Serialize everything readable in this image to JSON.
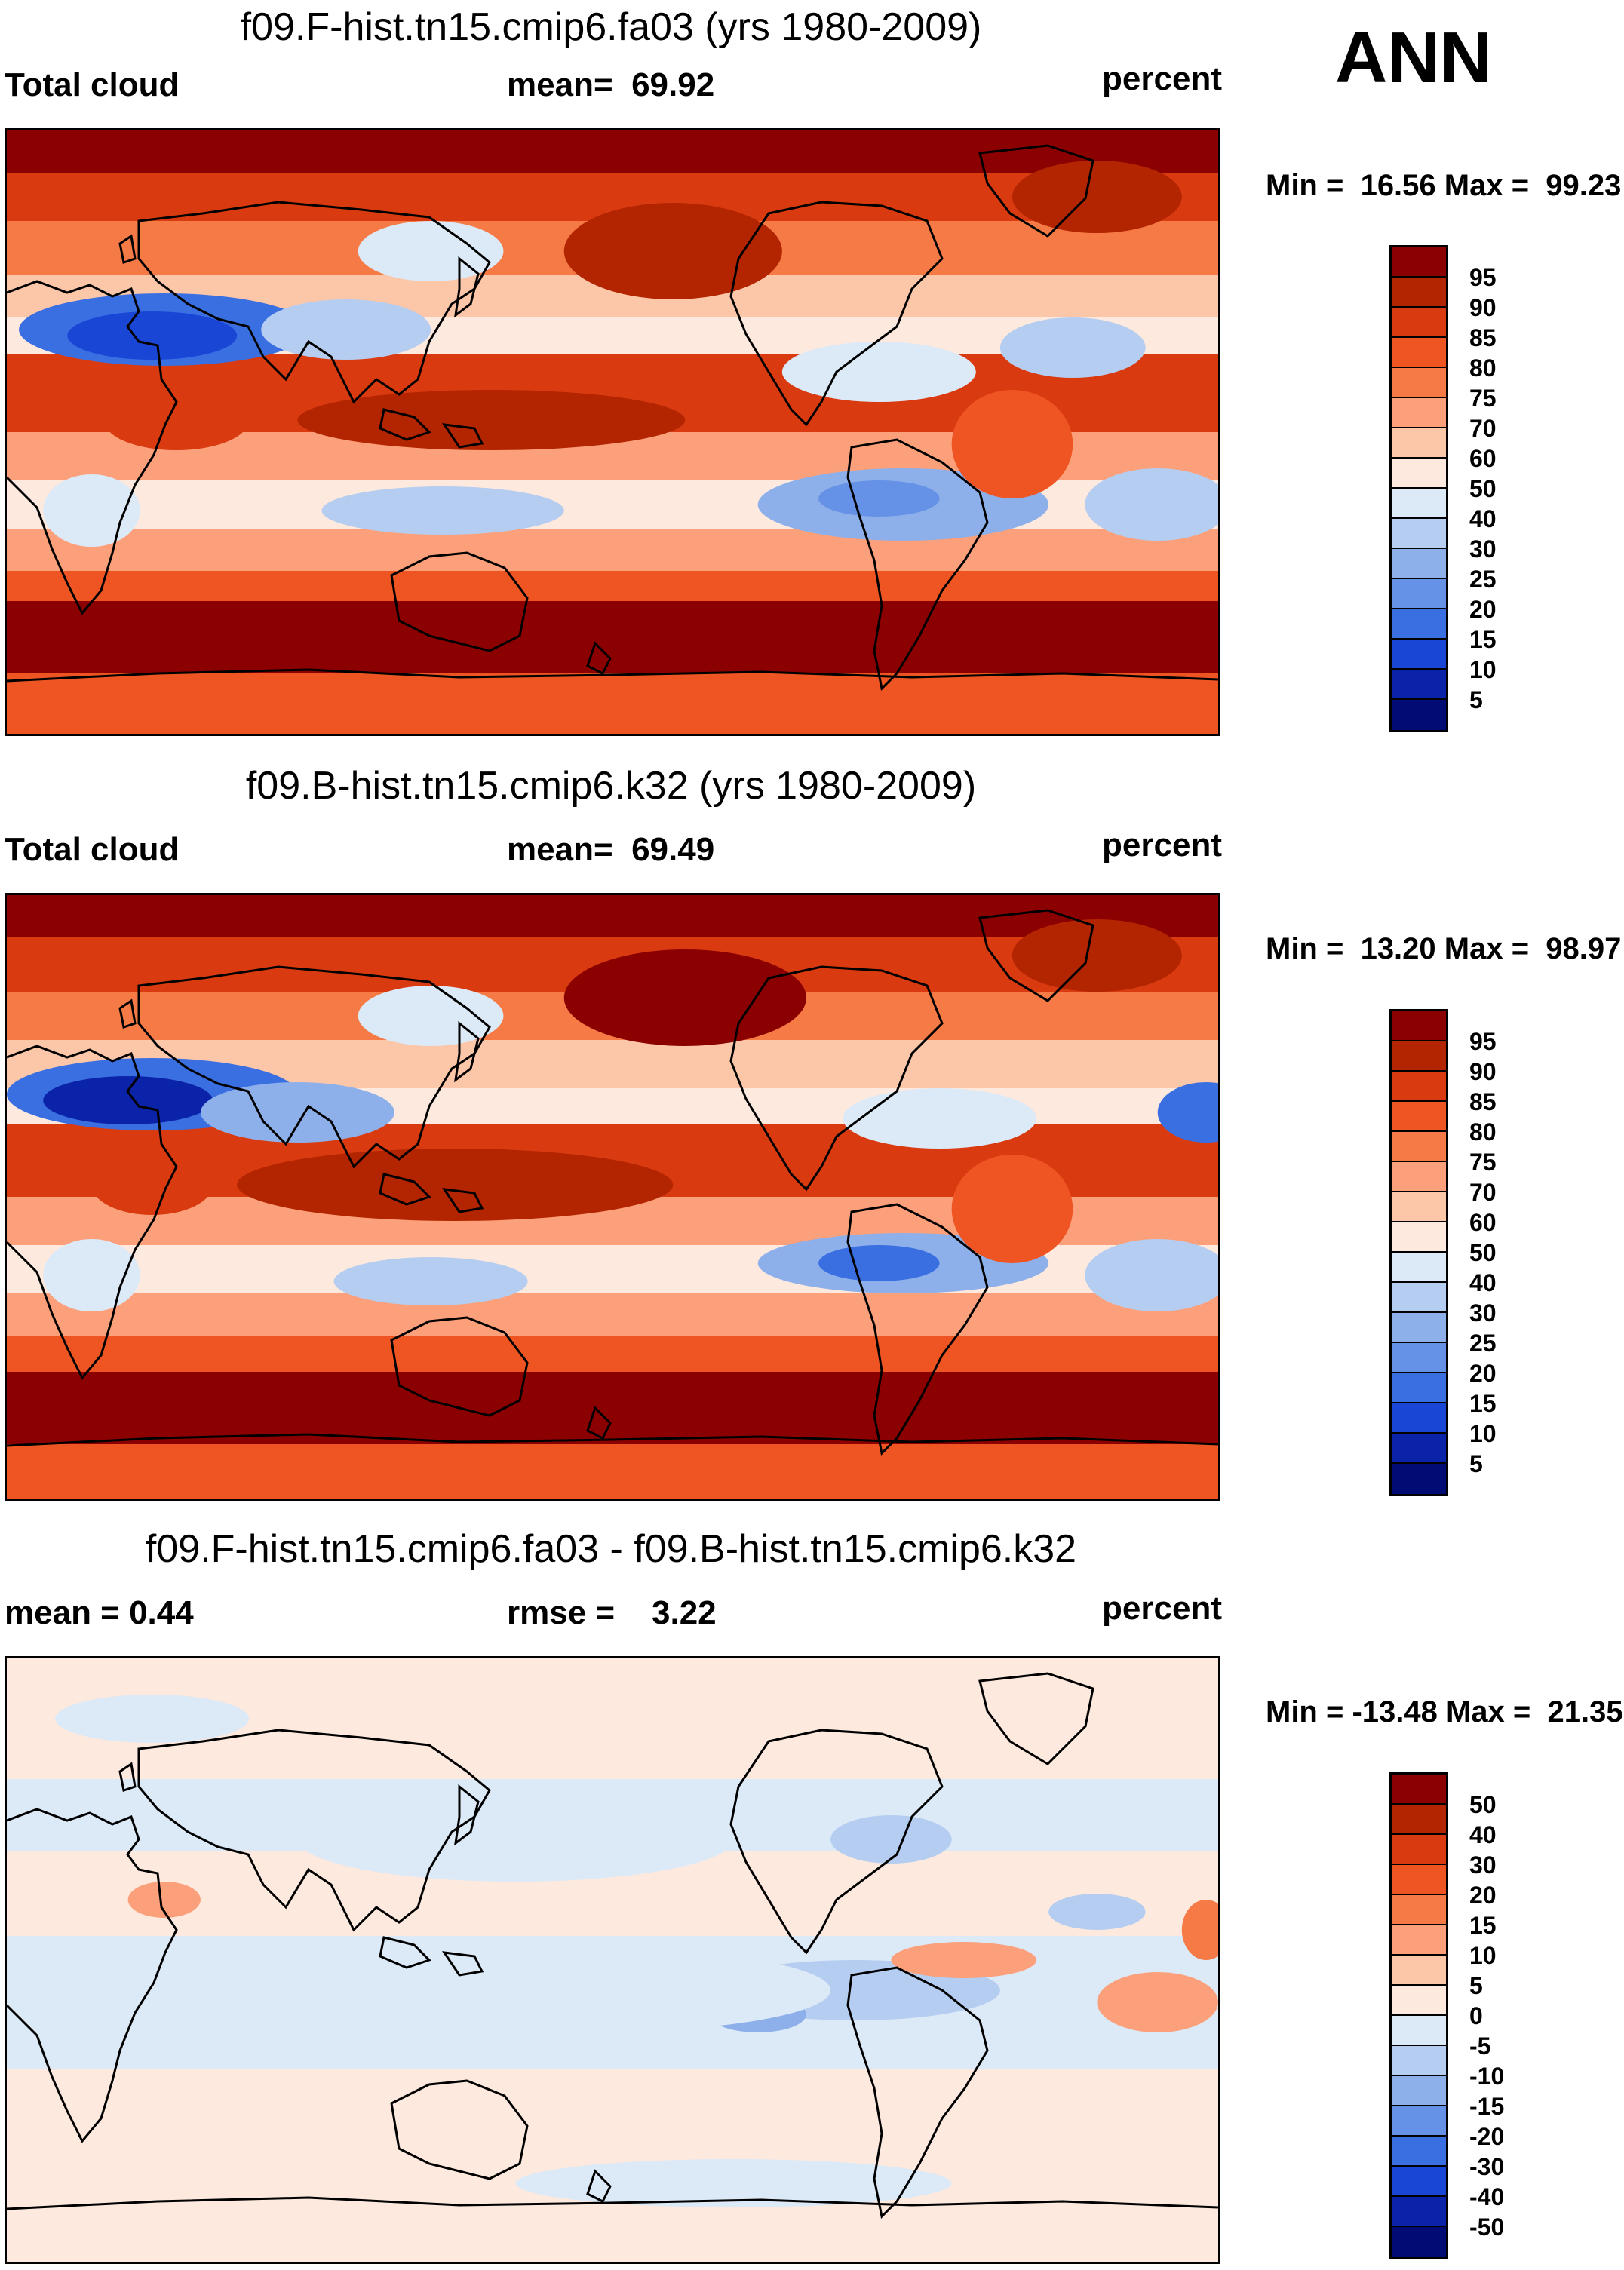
{
  "season": "ANN",
  "chart_data": [
    {
      "type": "heatmap",
      "title": "f09.F-hist.tn15.cmip6.fa03 (yrs 1980-2009)",
      "variable": "Total cloud",
      "stat_text": "mean=  69.92",
      "units": "percent",
      "minmax_text": "Min =  16.56 Max =  99.23",
      "min": 16.56,
      "max": 99.23,
      "mean": 69.92,
      "levels": [
        "95",
        "90",
        "85",
        "80",
        "75",
        "70",
        "60",
        "50",
        "40",
        "30",
        "25",
        "20",
        "15",
        "10",
        "5"
      ],
      "colors": [
        "#8b0000",
        "#b32400",
        "#d93a10",
        "#ef5523",
        "#f57a46",
        "#fba07a",
        "#fcc6a8",
        "#fde9de",
        "#dce9f7",
        "#b5cdf0",
        "#8eb0ea",
        "#6592e6",
        "#3a6fe2",
        "#1a46d6",
        "#0a23a8",
        "#000c73"
      ]
    },
    {
      "type": "heatmap",
      "title": "f09.B-hist.tn15.cmip6.k32 (yrs 1980-2009)",
      "variable": "Total cloud",
      "stat_text": "mean=  69.49",
      "units": "percent",
      "minmax_text": "Min =  13.20 Max =  98.97",
      "min": 13.2,
      "max": 98.97,
      "mean": 69.49,
      "levels": [
        "95",
        "90",
        "85",
        "80",
        "75",
        "70",
        "60",
        "50",
        "40",
        "30",
        "25",
        "20",
        "15",
        "10",
        "5"
      ],
      "colors": [
        "#8b0000",
        "#b32400",
        "#d93a10",
        "#ef5523",
        "#f57a46",
        "#fba07a",
        "#fcc6a8",
        "#fde9de",
        "#dce9f7",
        "#b5cdf0",
        "#8eb0ea",
        "#6592e6",
        "#3a6fe2",
        "#1a46d6",
        "#0a23a8",
        "#000c73"
      ]
    },
    {
      "type": "heatmap",
      "title": "f09.F-hist.tn15.cmip6.fa03 - f09.B-hist.tn15.cmip6.k32",
      "variable": "mean =   0.44",
      "stat_text": "rmse =    3.22",
      "units": "percent",
      "minmax_text": "Min = -13.48 Max =  21.35",
      "min": -13.48,
      "max": 21.35,
      "mean": 0.44,
      "rmse": 3.22,
      "levels": [
        "50",
        "40",
        "30",
        "20",
        "15",
        "10",
        "5",
        "0",
        "-5",
        "-10",
        "-15",
        "-20",
        "-30",
        "-40",
        "-50"
      ],
      "colors": [
        "#8b0000",
        "#b32400",
        "#d93a10",
        "#ef5523",
        "#f57a46",
        "#fba07a",
        "#fcc6a8",
        "#fde9de",
        "#dce9f7",
        "#b5cdf0",
        "#8eb0ea",
        "#6592e6",
        "#3a6fe2",
        "#1a46d6",
        "#0a23a8",
        "#000c73"
      ]
    }
  ]
}
